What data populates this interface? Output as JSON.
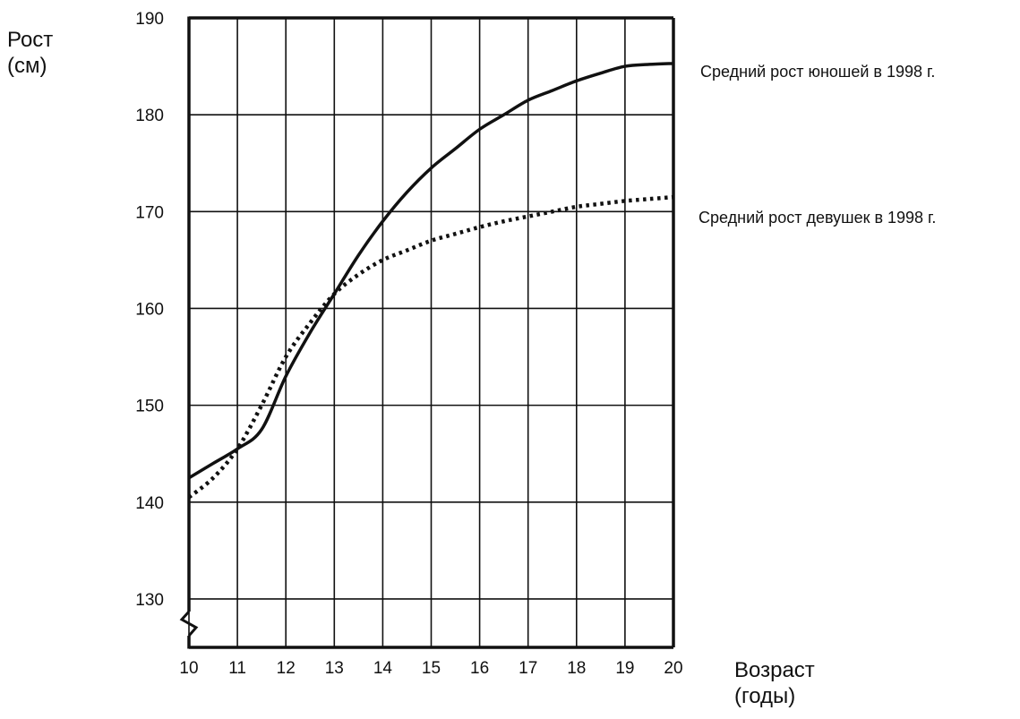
{
  "chart_data": {
    "type": "line",
    "ylabel_line1": "Рост",
    "ylabel_line2": "(см)",
    "xlabel_line1": "Возраст",
    "xlabel_line2": "(годы)",
    "xlim": [
      10,
      20
    ],
    "ylim": [
      125,
      190
    ],
    "x_ticks": [
      10,
      11,
      12,
      13,
      14,
      15,
      16,
      17,
      18,
      19,
      20
    ],
    "y_ticks": [
      130,
      140,
      150,
      160,
      170,
      180,
      190
    ],
    "grid": true,
    "axis_break": "y-axis-bottom",
    "series": [
      {
        "name": "Средний рост юношей в 1998 г.",
        "style": "solid",
        "color": "#111111",
        "x": [
          10,
          10.5,
          11,
          11.5,
          12,
          12.5,
          13,
          13.5,
          14,
          14.5,
          15,
          15.5,
          16,
          16.5,
          17,
          17.5,
          18,
          18.5,
          19,
          19.5,
          20
        ],
        "y": [
          142.5,
          144,
          145.5,
          147.5,
          153,
          157.5,
          161.5,
          165.5,
          169,
          172,
          174.5,
          176.5,
          178.5,
          180,
          181.5,
          182.5,
          183.5,
          184.3,
          185,
          185.2,
          185.3
        ]
      },
      {
        "name": "Средний рост девушек в 1998 г.",
        "style": "dotted",
        "color": "#111111",
        "x": [
          10,
          10.5,
          11,
          11.5,
          12,
          12.5,
          13,
          13.5,
          14,
          14.5,
          15,
          15.5,
          16,
          16.5,
          17,
          17.5,
          18,
          18.5,
          19,
          19.5,
          20
        ],
        "y": [
          140.5,
          142.5,
          145.5,
          150,
          155,
          158.5,
          161.5,
          163.5,
          165,
          166,
          167,
          167.7,
          168.4,
          169,
          169.5,
          170,
          170.5,
          170.8,
          171.1,
          171.3,
          171.5
        ]
      }
    ]
  }
}
